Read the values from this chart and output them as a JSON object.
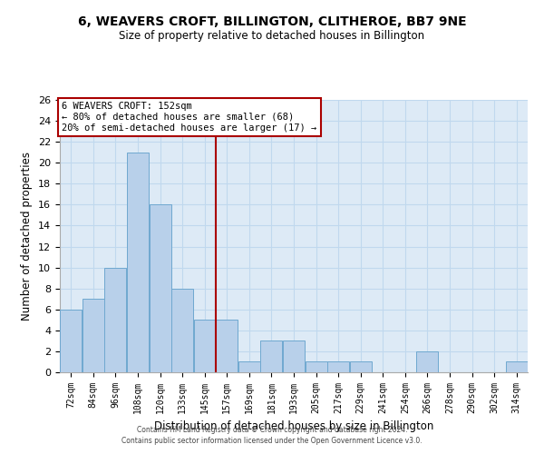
{
  "title1": "6, WEAVERS CROFT, BILLINGTON, CLITHEROE, BB7 9NE",
  "title2": "Size of property relative to detached houses in Billington",
  "xlabel": "Distribution of detached houses by size in Billington",
  "ylabel": "Number of detached properties",
  "bar_labels": [
    "72sqm",
    "84sqm",
    "96sqm",
    "108sqm",
    "120sqm",
    "133sqm",
    "145sqm",
    "157sqm",
    "169sqm",
    "181sqm",
    "193sqm",
    "205sqm",
    "217sqm",
    "229sqm",
    "241sqm",
    "254sqm",
    "266sqm",
    "278sqm",
    "290sqm",
    "302sqm",
    "314sqm"
  ],
  "bar_values": [
    6,
    7,
    10,
    21,
    16,
    8,
    5,
    5,
    1,
    3,
    3,
    1,
    1,
    1,
    0,
    0,
    2,
    0,
    0,
    0,
    1
  ],
  "bar_color": "#b8d0ea",
  "bar_edge_color": "#6fa8d0",
  "reference_line_x": 6.5,
  "annotation_title": "6 WEAVERS CROFT: 152sqm",
  "annotation_line1": "← 80% of detached houses are smaller (68)",
  "annotation_line2": "20% of semi-detached houses are larger (17) →",
  "annotation_box_color": "#ffffff",
  "annotation_box_edge_color": "#aa0000",
  "vline_color": "#aa0000",
  "ylim": [
    0,
    26
  ],
  "yticks": [
    0,
    2,
    4,
    6,
    8,
    10,
    12,
    14,
    16,
    18,
    20,
    22,
    24,
    26
  ],
  "grid_color": "#c0d8ee",
  "bg_color": "#ddeaf6",
  "footer1": "Contains HM Land Registry data © Crown copyright and database right 2024.",
  "footer2": "Contains public sector information licensed under the Open Government Licence v3.0."
}
